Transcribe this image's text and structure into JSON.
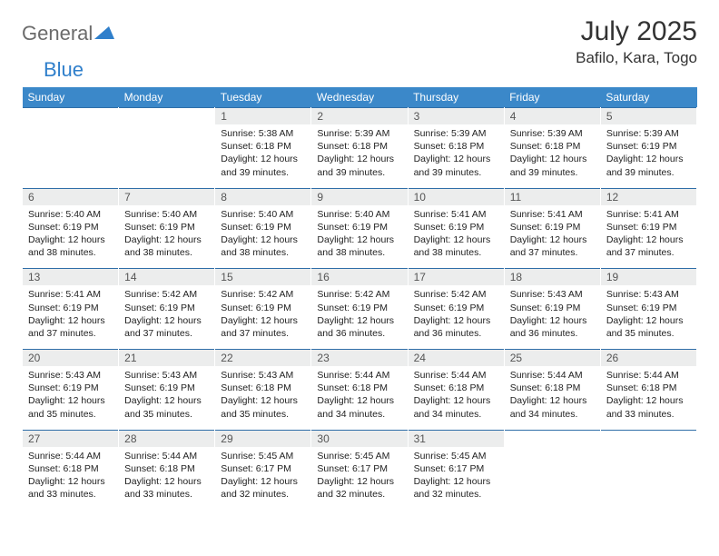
{
  "brand": {
    "part1": "General",
    "part2": "Blue"
  },
  "title": "July 2025",
  "location": "Bafilo, Kara, Togo",
  "colors": {
    "header_bg": "#3b88c9",
    "header_text": "#ffffff",
    "daynum_bg": "#eceded",
    "rule": "#2f6ea8",
    "logo_gray": "#6b6b6b",
    "logo_blue": "#2f7fcb"
  },
  "weekdays": [
    "Sunday",
    "Monday",
    "Tuesday",
    "Wednesday",
    "Thursday",
    "Friday",
    "Saturday"
  ],
  "weeks": [
    [
      null,
      null,
      {
        "n": "1",
        "sr": "5:38 AM",
        "ss": "6:18 PM",
        "dl": "12 hours and 39 minutes."
      },
      {
        "n": "2",
        "sr": "5:39 AM",
        "ss": "6:18 PM",
        "dl": "12 hours and 39 minutes."
      },
      {
        "n": "3",
        "sr": "5:39 AM",
        "ss": "6:18 PM",
        "dl": "12 hours and 39 minutes."
      },
      {
        "n": "4",
        "sr": "5:39 AM",
        "ss": "6:18 PM",
        "dl": "12 hours and 39 minutes."
      },
      {
        "n": "5",
        "sr": "5:39 AM",
        "ss": "6:19 PM",
        "dl": "12 hours and 39 minutes."
      }
    ],
    [
      {
        "n": "6",
        "sr": "5:40 AM",
        "ss": "6:19 PM",
        "dl": "12 hours and 38 minutes."
      },
      {
        "n": "7",
        "sr": "5:40 AM",
        "ss": "6:19 PM",
        "dl": "12 hours and 38 minutes."
      },
      {
        "n": "8",
        "sr": "5:40 AM",
        "ss": "6:19 PM",
        "dl": "12 hours and 38 minutes."
      },
      {
        "n": "9",
        "sr": "5:40 AM",
        "ss": "6:19 PM",
        "dl": "12 hours and 38 minutes."
      },
      {
        "n": "10",
        "sr": "5:41 AM",
        "ss": "6:19 PM",
        "dl": "12 hours and 38 minutes."
      },
      {
        "n": "11",
        "sr": "5:41 AM",
        "ss": "6:19 PM",
        "dl": "12 hours and 37 minutes."
      },
      {
        "n": "12",
        "sr": "5:41 AM",
        "ss": "6:19 PM",
        "dl": "12 hours and 37 minutes."
      }
    ],
    [
      {
        "n": "13",
        "sr": "5:41 AM",
        "ss": "6:19 PM",
        "dl": "12 hours and 37 minutes."
      },
      {
        "n": "14",
        "sr": "5:42 AM",
        "ss": "6:19 PM",
        "dl": "12 hours and 37 minutes."
      },
      {
        "n": "15",
        "sr": "5:42 AM",
        "ss": "6:19 PM",
        "dl": "12 hours and 37 minutes."
      },
      {
        "n": "16",
        "sr": "5:42 AM",
        "ss": "6:19 PM",
        "dl": "12 hours and 36 minutes."
      },
      {
        "n": "17",
        "sr": "5:42 AM",
        "ss": "6:19 PM",
        "dl": "12 hours and 36 minutes."
      },
      {
        "n": "18",
        "sr": "5:43 AM",
        "ss": "6:19 PM",
        "dl": "12 hours and 36 minutes."
      },
      {
        "n": "19",
        "sr": "5:43 AM",
        "ss": "6:19 PM",
        "dl": "12 hours and 35 minutes."
      }
    ],
    [
      {
        "n": "20",
        "sr": "5:43 AM",
        "ss": "6:19 PM",
        "dl": "12 hours and 35 minutes."
      },
      {
        "n": "21",
        "sr": "5:43 AM",
        "ss": "6:19 PM",
        "dl": "12 hours and 35 minutes."
      },
      {
        "n": "22",
        "sr": "5:43 AM",
        "ss": "6:18 PM",
        "dl": "12 hours and 35 minutes."
      },
      {
        "n": "23",
        "sr": "5:44 AM",
        "ss": "6:18 PM",
        "dl": "12 hours and 34 minutes."
      },
      {
        "n": "24",
        "sr": "5:44 AM",
        "ss": "6:18 PM",
        "dl": "12 hours and 34 minutes."
      },
      {
        "n": "25",
        "sr": "5:44 AM",
        "ss": "6:18 PM",
        "dl": "12 hours and 34 minutes."
      },
      {
        "n": "26",
        "sr": "5:44 AM",
        "ss": "6:18 PM",
        "dl": "12 hours and 33 minutes."
      }
    ],
    [
      {
        "n": "27",
        "sr": "5:44 AM",
        "ss": "6:18 PM",
        "dl": "12 hours and 33 minutes."
      },
      {
        "n": "28",
        "sr": "5:44 AM",
        "ss": "6:18 PM",
        "dl": "12 hours and 33 minutes."
      },
      {
        "n": "29",
        "sr": "5:45 AM",
        "ss": "6:17 PM",
        "dl": "12 hours and 32 minutes."
      },
      {
        "n": "30",
        "sr": "5:45 AM",
        "ss": "6:17 PM",
        "dl": "12 hours and 32 minutes."
      },
      {
        "n": "31",
        "sr": "5:45 AM",
        "ss": "6:17 PM",
        "dl": "12 hours and 32 minutes."
      },
      null,
      null
    ]
  ],
  "labels": {
    "sunrise": "Sunrise:",
    "sunset": "Sunset:",
    "daylight": "Daylight:"
  }
}
